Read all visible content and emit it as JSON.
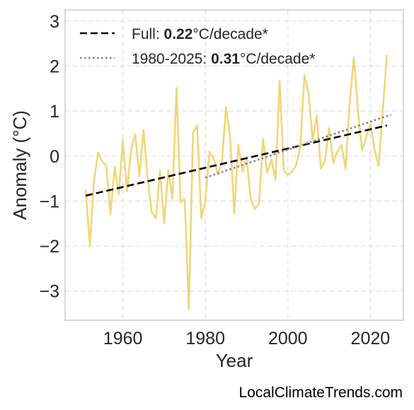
{
  "chart_data": {
    "type": "line",
    "title": "",
    "xlabel": "Year",
    "ylabel": "Anomaly (°C)",
    "xlim": [
      1946,
      2028
    ],
    "ylim": [
      -3.65,
      3.25
    ],
    "xticks": [
      1960,
      1980,
      2000,
      2020
    ],
    "yticks": [
      -3,
      -2,
      -1,
      0,
      1,
      2,
      3
    ],
    "ytick_labels": [
      "−3",
      "−2",
      "−1",
      "0",
      "1",
      "2",
      "3"
    ],
    "grid": true,
    "legend_position": "top-left",
    "series": [
      {
        "type": "line",
        "color": "#f0d67a",
        "x": [
          1951,
          1952,
          1953,
          1954,
          1955,
          1956,
          1957,
          1958,
          1959,
          1960,
          1961,
          1962,
          1963,
          1964,
          1965,
          1966,
          1967,
          1968,
          1969,
          1970,
          1971,
          1972,
          1973,
          1974,
          1975,
          1976,
          1977,
          1978,
          1979,
          1980,
          1981,
          1982,
          1983,
          1984,
          1985,
          1986,
          1987,
          1988,
          1989,
          1990,
          1991,
          1992,
          1993,
          1994,
          1995,
          1996,
          1997,
          1998,
          1999,
          2000,
          2001,
          2002,
          2003,
          2004,
          2005,
          2006,
          2007,
          2008,
          2009,
          2010,
          2011,
          2012,
          2013,
          2014,
          2015,
          2016,
          2017,
          2018,
          2019,
          2020,
          2021,
          2022,
          2023,
          2024
        ],
        "y": [
          -0.75,
          -2.0,
          -0.55,
          0.08,
          -0.12,
          -0.22,
          -1.3,
          -0.25,
          -0.85,
          0.35,
          -0.78,
          0.15,
          0.48,
          -0.45,
          0.58,
          -0.5,
          -1.25,
          -1.38,
          -0.32,
          -1.5,
          -0.32,
          -0.95,
          1.52,
          -1.02,
          -0.95,
          -3.4,
          0.52,
          0.68,
          -1.38,
          -1.0,
          0.1,
          -0.05,
          -0.4,
          -0.15,
          1.08,
          0.42,
          -1.28,
          0.25,
          -0.35,
          -0.05,
          -0.95,
          -1.18,
          -1.05,
          0.38,
          -0.38,
          -0.08,
          -0.52,
          1.68,
          -0.32,
          -0.42,
          -0.35,
          -0.2,
          0.2,
          1.8,
          1.4,
          0.35,
          0.9,
          -0.28,
          -0.1,
          0.62,
          -0.15,
          0.1,
          0.25,
          -0.28,
          1.2,
          2.2,
          0.98,
          0.12,
          0.42,
          0.72,
          0.15,
          -0.22,
          1.02,
          2.25
        ]
      },
      {
        "type": "line",
        "style": "dashed",
        "color": "#000000",
        "x": [
          1951,
          2024
        ],
        "y": [
          -0.88,
          0.68
        ]
      },
      {
        "type": "line",
        "style": "dotted",
        "color": "#808080",
        "x": [
          1980,
          2025
        ],
        "y": [
          -0.48,
          0.92
        ]
      }
    ],
    "legend": [
      {
        "prefix": "Full: ",
        "value": "0.22",
        "suffix": "°C/decade*",
        "style": "dashed",
        "color": "#000000"
      },
      {
        "prefix": "1980-2025: ",
        "value": "0.31",
        "suffix": "°C/decade*",
        "style": "dotted",
        "color": "#808080"
      }
    ]
  },
  "source_text": "LocalClimateTrends.com"
}
